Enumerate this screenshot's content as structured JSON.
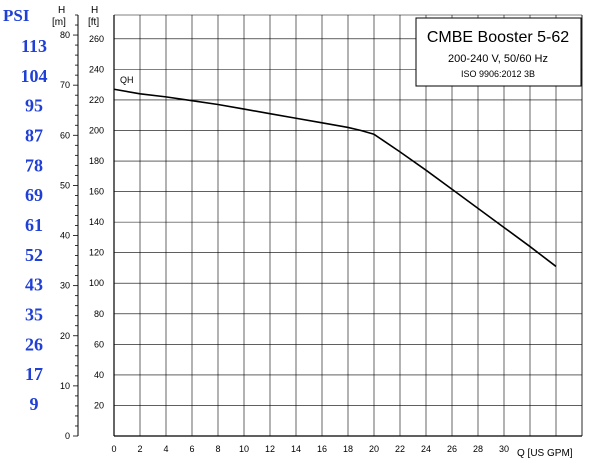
{
  "chart_data": {
    "type": "line",
    "legend": {
      "title": "CMBE Booster 5-62",
      "line2": "200-240 V, 50/60 Hz",
      "line3": "ISO 9906:2012 3B"
    },
    "psi_header": "PSI",
    "psi_labels": [
      "113",
      "104",
      "95",
      "87",
      "78",
      "69",
      "61",
      "52",
      "43",
      "35",
      "26",
      "17",
      "9"
    ],
    "m_axis": {
      "header": "H",
      "unit": "[m]",
      "min": 0,
      "max": 84,
      "ticks": [
        0,
        10,
        20,
        30,
        40,
        50,
        60,
        70,
        80
      ]
    },
    "ft_axis": {
      "header": "H",
      "unit": "[ft]",
      "ticks": [
        20,
        40,
        60,
        80,
        100,
        120,
        140,
        160,
        180,
        200,
        220,
        240,
        260
      ]
    },
    "x_axis": {
      "label": "Q [US GPM]",
      "min": 0,
      "max": 36,
      "ticks": [
        0,
        2,
        4,
        6,
        8,
        10,
        12,
        14,
        16,
        18,
        20,
        22,
        24,
        26,
        28,
        30
      ]
    },
    "series": [
      {
        "name": "QH",
        "x": [
          0,
          2,
          4,
          6,
          8,
          10,
          12,
          14,
          16,
          18,
          19,
          20,
          22,
          24,
          26,
          28,
          30,
          32,
          34
        ],
        "y_ft": [
          227,
          224,
          222,
          219.5,
          217,
          214,
          211,
          208,
          205,
          202,
          200,
          197.5,
          186,
          174,
          161.5,
          149,
          136.5,
          124,
          111
        ]
      }
    ]
  }
}
